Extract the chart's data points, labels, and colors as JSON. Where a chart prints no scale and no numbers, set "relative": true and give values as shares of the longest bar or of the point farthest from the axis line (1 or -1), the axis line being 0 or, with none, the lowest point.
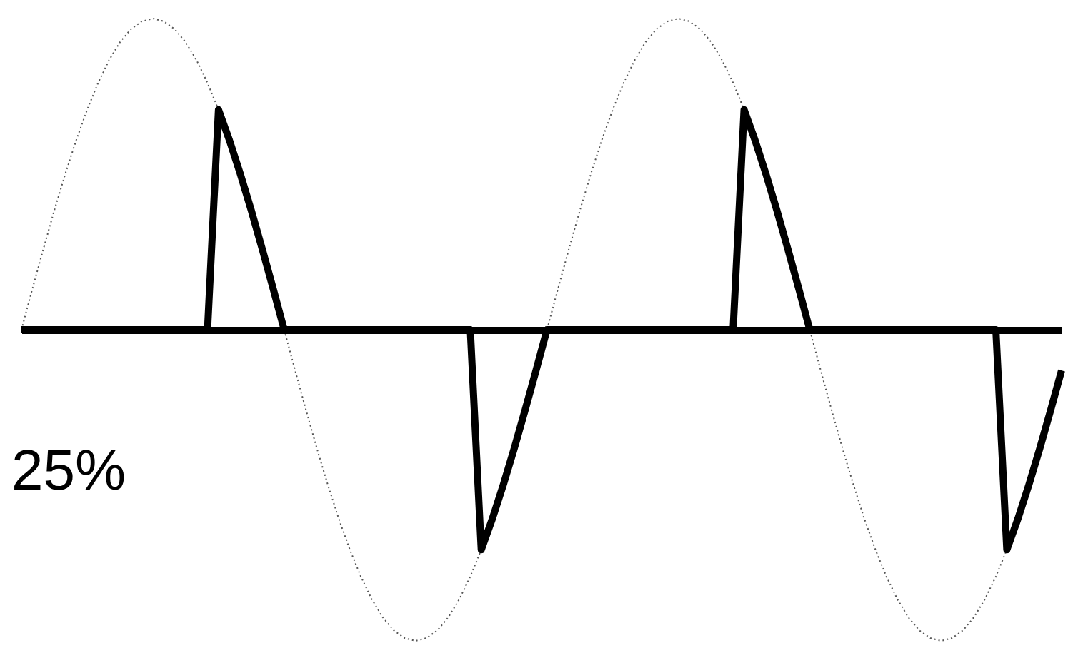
{
  "chart_data": {
    "type": "line",
    "relative": true,
    "tick_labels": false,
    "grid": false,
    "annotations": [
      "25%"
    ],
    "categories": [
      null,
      null,
      null,
      null,
      null,
      null,
      null,
      null,
      null,
      null,
      null,
      null,
      null,
      null,
      null,
      null,
      null,
      null,
      null,
      null,
      null,
      null,
      null,
      null,
      null,
      null,
      null,
      null,
      null,
      null,
      null,
      null,
      null,
      null,
      null,
      null,
      null,
      null,
      null,
      null,
      null,
      null,
      null,
      null,
      null,
      null,
      null,
      null,
      null,
      null,
      null,
      null,
      null,
      null,
      null,
      null,
      null,
      null,
      null,
      null,
      null,
      null,
      null,
      null,
      null,
      null,
      null,
      null,
      null,
      null,
      null,
      null,
      null,
      null,
      null,
      null,
      null,
      null,
      null,
      null,
      null,
      null,
      null,
      null,
      null,
      null,
      null,
      null,
      null,
      null,
      null,
      null,
      null,
      null,
      null,
      null
    ],
    "series": [
      {
        "color": "#555555",
        "line_style": "dotted",
        "values": [
          0,
          0.131,
          0.259,
          0.383,
          0.5,
          0.609,
          0.707,
          0.793,
          0.866,
          0.924,
          0.966,
          0.991,
          1,
          0.991,
          0.966,
          0.924,
          0.866,
          0.793,
          0.707,
          0.609,
          0.5,
          0.383,
          0.259,
          0.131,
          0,
          -0.131,
          -0.259,
          -0.383,
          -0.5,
          -0.609,
          -0.707,
          -0.793,
          -0.866,
          -0.924,
          -0.966,
          -0.991,
          -1,
          -0.991,
          -0.966,
          -0.924,
          -0.866,
          -0.793,
          -0.707,
          -0.609,
          -0.5,
          -0.383,
          -0.259,
          -0.131,
          0,
          0.131,
          0.259,
          0.383,
          0.5,
          0.609,
          0.707,
          0.793,
          0.866,
          0.924,
          0.966,
          0.991,
          1,
          0.991,
          0.966,
          0.924,
          0.866,
          0.793,
          0.707,
          0.609,
          0.5,
          0.383,
          0.259,
          0.131,
          0,
          -0.131,
          -0.259,
          -0.383,
          -0.5,
          -0.609,
          -0.707,
          -0.793,
          -0.866,
          -0.924,
          -0.966,
          -0.991,
          -1,
          -0.991,
          -0.966,
          -0.924,
          -0.866,
          -0.793,
          -0.707,
          -0.609,
          -0.5,
          -0.383,
          -0.259,
          -0.131
        ]
      },
      {
        "color": "#000000",
        "line_style": "solid",
        "values": [
          0,
          0,
          0,
          0,
          0,
          0,
          0,
          0,
          0,
          0,
          0,
          0,
          0,
          0,
          0,
          0,
          0,
          0,
          0.707,
          0.609,
          0.5,
          0.383,
          0.259,
          0.131,
          0,
          0,
          0,
          0,
          0,
          0,
          0,
          0,
          0,
          0,
          0,
          0,
          0,
          0,
          0,
          0,
          0,
          0,
          -0.707,
          -0.609,
          -0.5,
          -0.383,
          -0.259,
          -0.131,
          0,
          0,
          0,
          0,
          0,
          0,
          0,
          0,
          0,
          0,
          0,
          0,
          0,
          0,
          0,
          0,
          0,
          0,
          0.707,
          0.609,
          0.5,
          0.383,
          0.259,
          0.131,
          0,
          0,
          0,
          0,
          0,
          0,
          0,
          0,
          0,
          0,
          0,
          0,
          0,
          0,
          0,
          0,
          0,
          0,
          -0.707,
          -0.609,
          -0.5,
          -0.383,
          -0.259,
          -0.131
        ]
      }
    ]
  }
}
